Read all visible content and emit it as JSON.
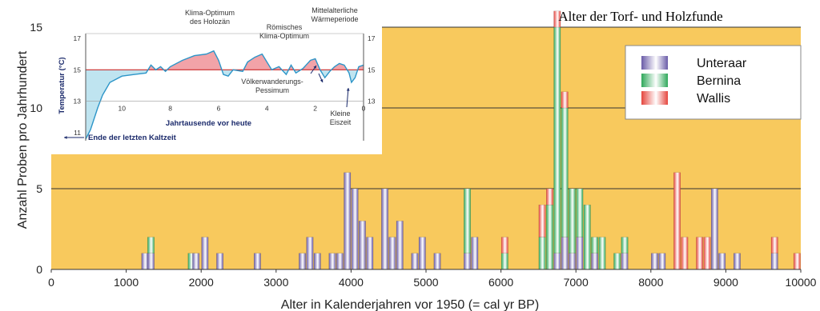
{
  "chart_data": {
    "type": "bar",
    "title": "Alter der Torf- und Holzfunde",
    "xlabel": "Alter in Kalenderjahren vor 1950 (= cal yr BP)",
    "ylabel": "Anzahl Proben pro Jahrhundert",
    "xlim": [
      0,
      10000
    ],
    "ylim": [
      0,
      15
    ],
    "x_ticks": [
      "0",
      "1000",
      "2000",
      "3000",
      "4000",
      "5000",
      "6000",
      "7000",
      "8000",
      "9000",
      "10000"
    ],
    "y_ticks": [
      "0",
      "5",
      "10",
      "15"
    ],
    "grid": "horizontal",
    "legend_position": "top-right",
    "colors": {
      "background": "#f8c95d",
      "Unteraar": "#6a5ca8",
      "Bernina": "#2fa85a",
      "Wallis": "#e5463e"
    },
    "series_names": [
      "Unteraar",
      "Bernina",
      "Wallis"
    ],
    "bars": [
      {
        "x": 1250,
        "Unteraar": 1,
        "Bernina": 0,
        "Wallis": 0
      },
      {
        "x": 1330,
        "Unteraar": 1,
        "Bernina": 1,
        "Wallis": 0
      },
      {
        "x": 1870,
        "Unteraar": 0,
        "Bernina": 1,
        "Wallis": 0
      },
      {
        "x": 1930,
        "Unteraar": 1,
        "Bernina": 0,
        "Wallis": 0
      },
      {
        "x": 2050,
        "Unteraar": 2,
        "Bernina": 0,
        "Wallis": 0
      },
      {
        "x": 2250,
        "Unteraar": 1,
        "Bernina": 0,
        "Wallis": 0
      },
      {
        "x": 2750,
        "Unteraar": 1,
        "Bernina": 0,
        "Wallis": 0
      },
      {
        "x": 3350,
        "Unteraar": 1,
        "Bernina": 0,
        "Wallis": 0
      },
      {
        "x": 3450,
        "Unteraar": 2,
        "Bernina": 0,
        "Wallis": 0
      },
      {
        "x": 3550,
        "Unteraar": 1,
        "Bernina": 0,
        "Wallis": 0
      },
      {
        "x": 3750,
        "Unteraar": 1,
        "Bernina": 0,
        "Wallis": 0
      },
      {
        "x": 3850,
        "Unteraar": 1,
        "Bernina": 0,
        "Wallis": 0
      },
      {
        "x": 3950,
        "Unteraar": 6,
        "Bernina": 0,
        "Wallis": 0
      },
      {
        "x": 4050,
        "Unteraar": 5,
        "Bernina": 0,
        "Wallis": 0
      },
      {
        "x": 4150,
        "Unteraar": 3,
        "Bernina": 0,
        "Wallis": 0
      },
      {
        "x": 4250,
        "Unteraar": 2,
        "Bernina": 0,
        "Wallis": 0
      },
      {
        "x": 4450,
        "Unteraar": 5,
        "Bernina": 0,
        "Wallis": 0
      },
      {
        "x": 4550,
        "Unteraar": 2,
        "Bernina": 0,
        "Wallis": 0
      },
      {
        "x": 4650,
        "Unteraar": 3,
        "Bernina": 0,
        "Wallis": 0
      },
      {
        "x": 4850,
        "Unteraar": 1,
        "Bernina": 0,
        "Wallis": 0
      },
      {
        "x": 4950,
        "Unteraar": 2,
        "Bernina": 0,
        "Wallis": 0
      },
      {
        "x": 5150,
        "Unteraar": 1,
        "Bernina": 0,
        "Wallis": 0
      },
      {
        "x": 5550,
        "Unteraar": 1,
        "Bernina": 4,
        "Wallis": 0
      },
      {
        "x": 5650,
        "Unteraar": 2,
        "Bernina": 0,
        "Wallis": 0
      },
      {
        "x": 6050,
        "Unteraar": 0,
        "Bernina": 1,
        "Wallis": 1
      },
      {
        "x": 6550,
        "Unteraar": 0,
        "Bernina": 2,
        "Wallis": 2
      },
      {
        "x": 6650,
        "Unteraar": 0,
        "Bernina": 4,
        "Wallis": 1
      },
      {
        "x": 6750,
        "Unteraar": 1,
        "Bernina": 14,
        "Wallis": 1
      },
      {
        "x": 6850,
        "Unteraar": 2,
        "Bernina": 8,
        "Wallis": 1
      },
      {
        "x": 6950,
        "Unteraar": 1,
        "Bernina": 4,
        "Wallis": 0
      },
      {
        "x": 7050,
        "Unteraar": 2,
        "Bernina": 3,
        "Wallis": 0
      },
      {
        "x": 7150,
        "Unteraar": 0,
        "Bernina": 4,
        "Wallis": 0
      },
      {
        "x": 7250,
        "Unteraar": 1,
        "Bernina": 1,
        "Wallis": 0
      },
      {
        "x": 7350,
        "Unteraar": 0,
        "Bernina": 2,
        "Wallis": 0
      },
      {
        "x": 7550,
        "Unteraar": 0,
        "Bernina": 1,
        "Wallis": 0
      },
      {
        "x": 7650,
        "Unteraar": 1,
        "Bernina": 1,
        "Wallis": 0
      },
      {
        "x": 8050,
        "Unteraar": 1,
        "Bernina": 0,
        "Wallis": 0
      },
      {
        "x": 8150,
        "Unteraar": 1,
        "Bernina": 0,
        "Wallis": 0
      },
      {
        "x": 8350,
        "Unteraar": 0,
        "Bernina": 0,
        "Wallis": 6
      },
      {
        "x": 8450,
        "Unteraar": 0,
        "Bernina": 0,
        "Wallis": 2
      },
      {
        "x": 8650,
        "Unteraar": 0,
        "Bernina": 0,
        "Wallis": 2
      },
      {
        "x": 8750,
        "Unteraar": 0,
        "Bernina": 0,
        "Wallis": 2
      },
      {
        "x": 8850,
        "Unteraar": 5,
        "Bernina": 0,
        "Wallis": 0
      },
      {
        "x": 8950,
        "Unteraar": 1,
        "Bernina": 0,
        "Wallis": 0
      },
      {
        "x": 9150,
        "Unteraar": 1,
        "Bernina": 0,
        "Wallis": 0
      },
      {
        "x": 9650,
        "Unteraar": 1,
        "Bernina": 0,
        "Wallis": 1
      },
      {
        "x": 9950,
        "Unteraar": 0,
        "Bernina": 0,
        "Wallis": 1
      }
    ],
    "inset": {
      "type": "area",
      "xlabel": "Jahrtausende vor heute",
      "ylabel": "Temperatur (°C)",
      "x_ticks": [
        "10",
        "8",
        "6",
        "4",
        "2",
        "0"
      ],
      "y_ticks_left": [
        "17",
        "15",
        "13",
        "11"
      ],
      "y_ticks_right": [
        "17",
        "15",
        "13"
      ],
      "xlim": [
        11.5,
        0
      ],
      "ylim": [
        10.5,
        17.3
      ],
      "baseline": 15,
      "colors": {
        "warm": "#f2a3a8",
        "cold": "#bfe4f0",
        "line": "#2c95c8"
      },
      "temperature_curve": [
        [
          11.5,
          10.6
        ],
        [
          11.3,
          11.2
        ],
        [
          11.0,
          12.6
        ],
        [
          10.8,
          13.4
        ],
        [
          10.5,
          14.2
        ],
        [
          10.0,
          14.6
        ],
        [
          9.5,
          14.7
        ],
        [
          9.0,
          14.8
        ],
        [
          8.8,
          15.3
        ],
        [
          8.6,
          15.0
        ],
        [
          8.4,
          15.2
        ],
        [
          8.2,
          14.9
        ],
        [
          8.0,
          15.2
        ],
        [
          7.5,
          15.6
        ],
        [
          7.0,
          15.9
        ],
        [
          6.5,
          16.0
        ],
        [
          6.2,
          16.2
        ],
        [
          6.0,
          15.6
        ],
        [
          5.8,
          14.7
        ],
        [
          5.6,
          14.6
        ],
        [
          5.4,
          15.0
        ],
        [
          5.0,
          14.9
        ],
        [
          4.8,
          15.5
        ],
        [
          4.5,
          15.8
        ],
        [
          4.2,
          16.0
        ],
        [
          4.0,
          15.5
        ],
        [
          3.8,
          15.0
        ],
        [
          3.5,
          15.2
        ],
        [
          3.2,
          14.7
        ],
        [
          3.0,
          15.3
        ],
        [
          2.8,
          14.8
        ],
        [
          2.5,
          15.1
        ],
        [
          2.2,
          15.6
        ],
        [
          2.0,
          15.7
        ],
        [
          1.8,
          15.0
        ],
        [
          1.6,
          14.5
        ],
        [
          1.4,
          14.9
        ],
        [
          1.2,
          15.2
        ],
        [
          1.0,
          15.4
        ],
        [
          0.8,
          15.3
        ],
        [
          0.6,
          14.8
        ],
        [
          0.5,
          14.2
        ],
        [
          0.35,
          14.5
        ],
        [
          0.2,
          15.2
        ],
        [
          0.0,
          15.3
        ]
      ],
      "annotations": {
        "holozaen": "Klima-Optimum des Holozän",
        "roemisch": "Römisches Klima-Optimum",
        "mittelalter": "Mittelalterliche Wärmeperiode",
        "voelkerwanderung": "Völkerwanderungs-Pessimum",
        "kleine_eiszeit": "Kleine Eiszeit",
        "kaltzeit": "Ende der letzten Kaltzeit"
      }
    }
  }
}
